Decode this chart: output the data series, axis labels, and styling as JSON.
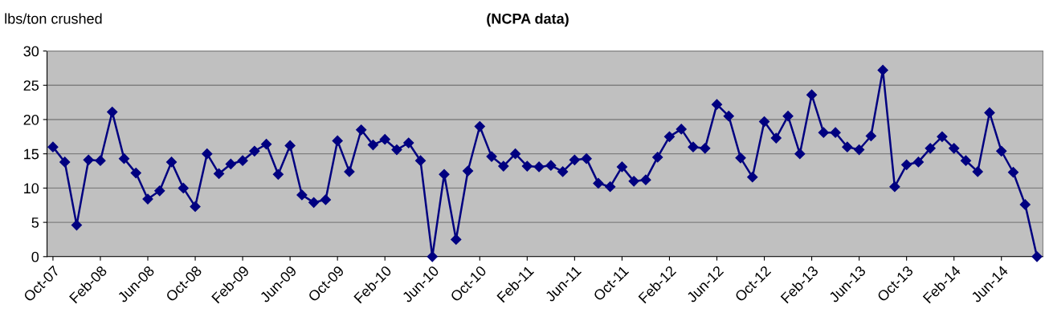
{
  "chart_data": {
    "type": "line",
    "title": "(NCPA data)",
    "ylabel": "lbs/ton crushed",
    "categories": [
      "Oct-07",
      null,
      null,
      null,
      "Feb-08",
      null,
      null,
      null,
      "Jun-08",
      null,
      null,
      null,
      "Oct-08",
      null,
      null,
      null,
      "Feb-09",
      null,
      null,
      null,
      "Jun-09",
      null,
      null,
      null,
      "Oct-09",
      null,
      null,
      null,
      "Feb-10",
      null,
      null,
      null,
      "Jun-10",
      null,
      null,
      null,
      "Oct-10",
      null,
      null,
      null,
      "Feb-11",
      null,
      null,
      null,
      "Jun-11",
      null,
      null,
      null,
      "Oct-11",
      null,
      null,
      null,
      "Feb-12",
      null,
      null,
      null,
      "Jun-12",
      null,
      null,
      null,
      "Oct-12",
      null,
      null,
      null,
      "Feb-13",
      null,
      null,
      null,
      "Jun-13",
      null,
      null,
      null,
      "Oct-13",
      null,
      null,
      null,
      "Feb-14",
      null,
      null,
      null,
      "Jun-14",
      null,
      null,
      null
    ],
    "series": [
      {
        "color": "#000080",
        "values": [
          16.0,
          13.8,
          4.6,
          14.1,
          14.0,
          21.1,
          14.3,
          12.2,
          8.4,
          9.6,
          13.8,
          10.0,
          7.3,
          15.0,
          12.1,
          13.5,
          14.0,
          15.4,
          16.4,
          12.0,
          16.2,
          9.0,
          7.9,
          8.3,
          16.9,
          12.4,
          18.5,
          16.3,
          17.1,
          15.6,
          16.6,
          14.0,
          0,
          12.0,
          2.5,
          12.5,
          19.0,
          14.6,
          13.2,
          15.0,
          13.2,
          13.1,
          13.3,
          12.4,
          14.1,
          14.3,
          10.7,
          10.2,
          13.1,
          11.0,
          11.2,
          14.5,
          17.5,
          18.6,
          16.0,
          15.8,
          22.2,
          20.5,
          14.4,
          11.6,
          19.7,
          17.3,
          20.5,
          15.0,
          23.6,
          18.1,
          18.1,
          16.0,
          15.6,
          17.6,
          27.2,
          10.2,
          13.4,
          13.8,
          15.8,
          17.5,
          15.8,
          14.0,
          12.4,
          21.0,
          15.4,
          12.3,
          7.6,
          0
        ]
      }
    ],
    "ylim": [
      0,
      30
    ],
    "yticks": [
      0,
      5,
      10,
      15,
      20,
      25,
      30
    ],
    "grid": "y",
    "marker": "diamond",
    "line_style": "solid",
    "legend": false
  }
}
